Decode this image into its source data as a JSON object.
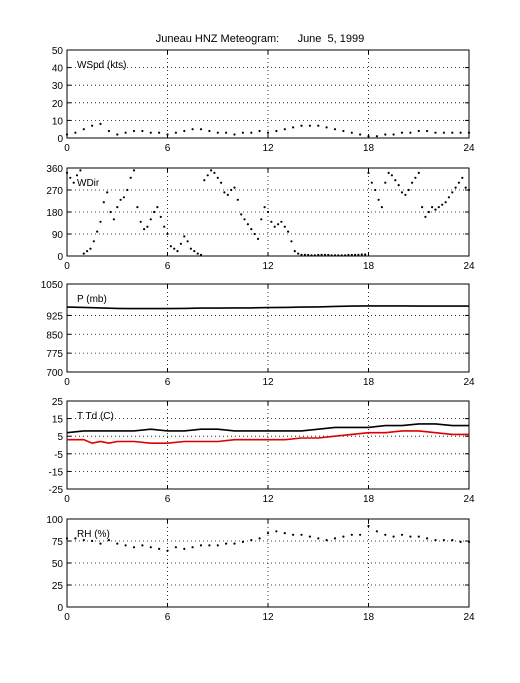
{
  "figure": {
    "title": "Juneau HNZ Meteogram:      June  5, 1999"
  },
  "chart_data": [
    {
      "type": "scatter",
      "label": "WSpd (kts)",
      "x_ticks": [
        0,
        6,
        12,
        18,
        24
      ],
      "ylim": [
        0,
        50
      ],
      "y_ticks": [
        0,
        10,
        20,
        30,
        40,
        50
      ],
      "grid": true,
      "series": [
        {
          "color": "#000000",
          "x": [
            0,
            0.5,
            1,
            1.5,
            2,
            2.5,
            3,
            3.5,
            4,
            4.5,
            5,
            5.5,
            6,
            6.5,
            7,
            7.5,
            8,
            8.5,
            9,
            9.5,
            10,
            10.5,
            11,
            11.5,
            12,
            12.5,
            13,
            13.5,
            14,
            14.5,
            15,
            15.5,
            16,
            16.5,
            17,
            17.5,
            18,
            18.5,
            19,
            19.5,
            20,
            20.5,
            21,
            21.5,
            22,
            22.5,
            23,
            23.5,
            24
          ],
          "y": [
            2,
            3,
            5,
            7,
            8,
            4,
            2,
            3,
            4,
            4,
            3,
            3,
            2,
            3,
            4,
            5,
            5,
            4,
            3,
            3,
            2,
            3,
            3,
            4,
            3,
            4,
            5,
            6,
            7,
            7,
            7,
            6,
            5,
            4,
            3,
            2,
            1,
            1,
            2,
            2,
            3,
            3,
            4,
            4,
            3,
            3,
            3,
            3,
            3
          ]
        }
      ]
    },
    {
      "type": "scatter",
      "label": "WDir",
      "x_ticks": [
        0,
        6,
        12,
        18,
        24
      ],
      "ylim": [
        0,
        360
      ],
      "y_ticks": [
        0,
        90,
        180,
        270,
        360
      ],
      "grid": true,
      "series": [
        {
          "color": "#000000",
          "x": [
            0,
            0.2,
            0.4,
            0.6,
            0.8,
            1,
            1.2,
            1.4,
            1.6,
            1.8,
            2,
            2.2,
            2.4,
            2.6,
            2.8,
            3,
            3.2,
            3.4,
            3.6,
            3.8,
            4,
            4.2,
            4.4,
            4.6,
            4.8,
            5,
            5.2,
            5.4,
            5.6,
            5.8,
            6,
            6.2,
            6.4,
            6.6,
            6.8,
            7,
            7.2,
            7.4,
            7.6,
            7.8,
            8,
            8.2,
            8.4,
            8.6,
            8.8,
            9,
            9.2,
            9.4,
            9.6,
            9.8,
            10,
            10.2,
            10.4,
            10.6,
            10.8,
            11,
            11.2,
            11.4,
            11.6,
            11.8,
            12,
            12.2,
            12.4,
            12.6,
            12.8,
            13,
            13.2,
            13.4,
            13.6,
            13.8,
            14,
            14.2,
            14.4,
            14.6,
            14.8,
            15,
            15.2,
            15.4,
            15.6,
            15.8,
            16,
            16.2,
            16.4,
            16.6,
            16.8,
            17,
            17.2,
            17.4,
            17.6,
            17.8,
            18,
            18.2,
            18.4,
            18.6,
            18.8,
            19,
            19.2,
            19.4,
            19.6,
            19.8,
            20,
            20.2,
            20.4,
            20.6,
            20.8,
            21,
            21.2,
            21.4,
            21.6,
            21.8,
            22,
            22.2,
            22.4,
            22.6,
            22.8,
            23,
            23.2,
            23.4,
            23.6,
            23.8,
            24
          ],
          "y": [
            340,
            320,
            300,
            330,
            350,
            10,
            20,
            30,
            60,
            100,
            140,
            220,
            260,
            180,
            150,
            200,
            230,
            240,
            270,
            320,
            350,
            200,
            140,
            110,
            120,
            150,
            180,
            200,
            160,
            120,
            90,
            40,
            30,
            20,
            50,
            80,
            60,
            30,
            20,
            10,
            5,
            310,
            330,
            350,
            340,
            320,
            300,
            260,
            250,
            270,
            280,
            230,
            170,
            150,
            130,
            110,
            90,
            70,
            150,
            200,
            180,
            140,
            120,
            130,
            140,
            120,
            100,
            60,
            20,
            10,
            5,
            5,
            4,
            3,
            3,
            4,
            5,
            5,
            4,
            3,
            3,
            3,
            3,
            3,
            4,
            4,
            5,
            5,
            6,
            6,
            340,
            300,
            270,
            230,
            200,
            300,
            340,
            330,
            310,
            290,
            260,
            250,
            270,
            300,
            320,
            340,
            200,
            160,
            180,
            200,
            190,
            200,
            210,
            220,
            240,
            260,
            280,
            300,
            320,
            280,
            270
          ]
        }
      ]
    },
    {
      "type": "line",
      "label": "P (mb)",
      "x_ticks": [
        0,
        6,
        12,
        18,
        24
      ],
      "ylim": [
        700,
        1050
      ],
      "y_ticks": [
        700,
        775,
        850,
        925,
        1050
      ],
      "grid": true,
      "series": [
        {
          "color": "#000000",
          "x": [
            0,
            1,
            2,
            3,
            4,
            5,
            6,
            7,
            8,
            9,
            10,
            11,
            12,
            13,
            14,
            15,
            16,
            17,
            18,
            19,
            20,
            21,
            22,
            23,
            24
          ],
          "y": [
            958,
            957,
            955,
            953,
            952,
            952,
            952,
            953,
            954,
            954,
            955,
            955,
            956,
            957,
            958,
            959,
            961,
            962,
            963,
            963,
            963,
            962,
            962,
            962,
            962
          ]
        }
      ]
    },
    {
      "type": "line",
      "label": "T Td (C)",
      "x_ticks": [
        0,
        6,
        12,
        18,
        24
      ],
      "ylim": [
        -25,
        25
      ],
      "y_ticks": [
        -25,
        -15,
        -5,
        5,
        15,
        25
      ],
      "grid": true,
      "series": [
        {
          "color": "#000000",
          "x": [
            0,
            1,
            2,
            3,
            4,
            5,
            6,
            7,
            8,
            9,
            10,
            11,
            12,
            13,
            14,
            15,
            16,
            17,
            18,
            19,
            20,
            21,
            22,
            23,
            24
          ],
          "y": [
            7,
            8,
            8,
            8,
            8,
            9,
            8,
            8,
            9,
            9,
            8,
            8,
            8,
            8,
            8,
            9,
            10,
            10,
            10,
            11,
            11,
            12,
            12,
            11,
            11
          ]
        },
        {
          "color": "#dd0000",
          "x": [
            0,
            1,
            1.5,
            2,
            2.5,
            3,
            4,
            5,
            6,
            7,
            8,
            9,
            10,
            11,
            12,
            13,
            14,
            15,
            16,
            17,
            18,
            19,
            20,
            21,
            22,
            23,
            24
          ],
          "y": [
            3,
            3,
            1,
            2,
            1,
            2,
            2,
            1,
            1,
            2,
            2,
            2,
            3,
            3,
            3,
            3,
            4,
            4,
            5,
            6,
            7,
            7,
            8,
            8,
            7,
            6,
            6
          ]
        }
      ]
    },
    {
      "type": "scatter",
      "label": "RH (%)",
      "x_ticks": [
        0,
        6,
        12,
        18,
        24
      ],
      "ylim": [
        0,
        100
      ],
      "y_ticks": [
        0,
        25,
        50,
        75,
        100
      ],
      "grid": true,
      "series": [
        {
          "color": "#000000",
          "x": [
            0,
            0.5,
            1,
            1.5,
            2,
            2.5,
            3,
            3.5,
            4,
            4.5,
            5,
            5.5,
            6,
            6.5,
            7,
            7.5,
            8,
            8.5,
            9,
            9.5,
            10,
            10.5,
            11,
            11.5,
            12,
            12.5,
            13,
            13.5,
            14,
            14.5,
            15,
            15.5,
            16,
            16.5,
            17,
            17.5,
            18,
            18.5,
            19,
            19.5,
            20,
            20.5,
            21,
            21.5,
            22,
            22.5,
            23,
            23.5,
            24
          ],
          "y": [
            78,
            78,
            76,
            75,
            72,
            76,
            72,
            70,
            68,
            70,
            68,
            66,
            64,
            68,
            66,
            68,
            70,
            70,
            70,
            72,
            72,
            74,
            76,
            78,
            84,
            86,
            84,
            82,
            82,
            80,
            78,
            76,
            78,
            80,
            82,
            82,
            92,
            86,
            82,
            80,
            82,
            80,
            80,
            78,
            76,
            76,
            76,
            74,
            74
          ]
        }
      ]
    }
  ]
}
